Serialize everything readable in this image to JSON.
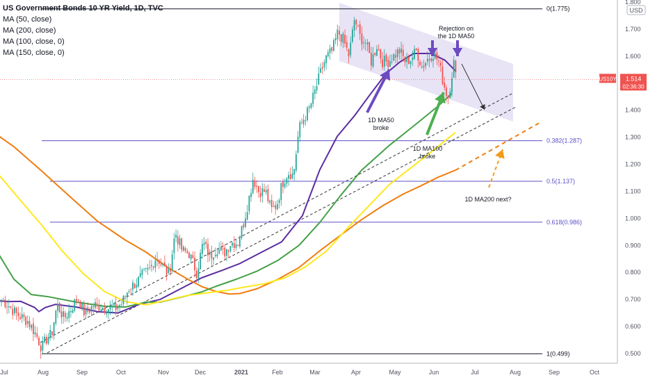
{
  "chart_data": {
    "type": "candlestick",
    "title": "US Government Bonds 10 YR Yield, 1D, TVC",
    "legend": [
      "MA (50, close)",
      "MA (200, close)",
      "MA (100, close, 0)",
      "MA (150, close, 0)"
    ],
    "currency": "USD",
    "x_ticks": [
      "Jul",
      "Aug",
      "Sep",
      "Oct",
      "Nov",
      "Dec",
      "2021",
      "Feb",
      "Mar",
      "Apr",
      "May",
      "Jun",
      "Jul",
      "Aug",
      "Sep",
      "Oct"
    ],
    "y_ticks": [
      "0.500",
      "0.600",
      "0.700",
      "0.800",
      "0.900",
      "1.000",
      "1.100",
      "1.200",
      "1.300",
      "1.400",
      "1.500",
      "1.600",
      "1.700",
      "1.800"
    ],
    "ylim": [
      0.45,
      1.8
    ],
    "price_tag": {
      "symbol": "US10Y",
      "value": "1.514",
      "countdown": "02:36:30",
      "color": "#ef5350"
    },
    "fib_levels": [
      {
        "label": "0(1.775)",
        "value": 1.775,
        "color": "#131722"
      },
      {
        "label": "0.382(1.287)",
        "value": 1.287,
        "color": "#5b4fc7"
      },
      {
        "label": "0.5(1.137)",
        "value": 1.137,
        "color": "#5b4fc7"
      },
      {
        "label": "0.618(0.986)",
        "value": 0.986,
        "color": "#5b4fc7"
      },
      {
        "label": "1(0.499)",
        "value": 0.499,
        "color": "#131722"
      }
    ],
    "annotations": [
      {
        "text": "Rejection on\nthe 1D MA50"
      },
      {
        "text": "1D MA50\nbroke"
      },
      {
        "text": "1D MA100\nbroke"
      },
      {
        "text": "1D MA200 next?"
      }
    ],
    "moving_averages": [
      {
        "name": "MA (50, close)",
        "color": "#5b2ca0",
        "points": [
          [
            -2,
            0.695
          ],
          [
            10,
            0.692
          ],
          [
            30,
            0.693
          ],
          [
            50,
            0.67
          ],
          [
            56,
            0.655
          ],
          [
            65,
            0.67
          ],
          [
            80,
            0.682
          ],
          [
            110,
            0.672
          ],
          [
            140,
            0.655
          ],
          [
            170,
            0.65
          ],
          [
            200,
            0.682
          ],
          [
            230,
            0.7
          ],
          [
            260,
            0.74
          ],
          [
            290,
            0.78
          ],
          [
            320,
            0.808
          ],
          [
            345,
            0.833
          ],
          [
            375,
            0.873
          ],
          [
            405,
            0.913
          ],
          [
            435,
            1.01
          ],
          [
            460,
            1.18
          ],
          [
            485,
            1.303
          ],
          [
            510,
            1.38
          ],
          [
            530,
            1.45
          ],
          [
            555,
            1.535
          ],
          [
            575,
            1.578
          ],
          [
            595,
            1.61
          ],
          [
            620,
            1.61
          ],
          [
            640,
            1.585
          ],
          [
            655,
            1.546
          ]
        ]
      },
      {
        "name": "MA (200, close)",
        "color": "#ef7d0f",
        "points": [
          [
            -2,
            1.305
          ],
          [
            20,
            1.265
          ],
          [
            60,
            1.175
          ],
          [
            100,
            1.082
          ],
          [
            140,
            0.99
          ],
          [
            180,
            0.92
          ],
          [
            210,
            0.875
          ],
          [
            240,
            0.82
          ],
          [
            270,
            0.775
          ],
          [
            290,
            0.748
          ],
          [
            310,
            0.73
          ],
          [
            330,
            0.72
          ],
          [
            345,
            0.722
          ],
          [
            370,
            0.74
          ],
          [
            400,
            0.775
          ],
          [
            430,
            0.818
          ],
          [
            460,
            0.88
          ],
          [
            490,
            0.938
          ],
          [
            520,
            0.995
          ],
          [
            550,
            1.046
          ],
          [
            580,
            1.09
          ],
          [
            605,
            1.12
          ],
          [
            630,
            1.152
          ],
          [
            655,
            1.178
          ]
        ]
      },
      {
        "name": "MA (100, close, 0)",
        "color": "#43a047",
        "points": [
          [
            -2,
            0.868
          ],
          [
            20,
            0.775
          ],
          [
            45,
            0.718
          ],
          [
            70,
            0.71
          ],
          [
            110,
            0.69
          ],
          [
            150,
            0.675
          ],
          [
            180,
            0.672
          ],
          [
            210,
            0.69
          ],
          [
            230,
            0.69
          ],
          [
            260,
            0.708
          ],
          [
            290,
            0.728
          ],
          [
            310,
            0.748
          ],
          [
            340,
            0.775
          ],
          [
            370,
            0.805
          ],
          [
            400,
            0.845
          ],
          [
            430,
            0.9
          ],
          [
            460,
            0.985
          ],
          [
            490,
            1.085
          ],
          [
            520,
            1.178
          ],
          [
            560,
            1.27
          ],
          [
            600,
            1.352
          ],
          [
            630,
            1.415
          ],
          [
            650,
            1.462
          ]
        ]
      },
      {
        "name": "MA (150, close, 0)",
        "color": "#ffe81c",
        "points": [
          [
            -2,
            1.162
          ],
          [
            30,
            1.065
          ],
          [
            60,
            0.975
          ],
          [
            90,
            0.878
          ],
          [
            120,
            0.795
          ],
          [
            150,
            0.73
          ],
          [
            180,
            0.692
          ],
          [
            210,
            0.68
          ],
          [
            240,
            0.697
          ],
          [
            270,
            0.715
          ],
          [
            300,
            0.725
          ],
          [
            330,
            0.735
          ],
          [
            350,
            0.745
          ],
          [
            380,
            0.758
          ],
          [
            410,
            0.78
          ],
          [
            440,
            0.822
          ],
          [
            470,
            0.88
          ],
          [
            500,
            0.965
          ],
          [
            530,
            1.045
          ],
          [
            560,
            1.125
          ],
          [
            590,
            1.185
          ],
          [
            620,
            1.245
          ],
          [
            655,
            1.318
          ]
        ]
      }
    ],
    "price_keys": [
      [
        2,
        0.7
      ],
      [
        12,
        0.68
      ],
      [
        24,
        0.645
      ],
      [
        40,
        0.62
      ],
      [
        52,
        0.57
      ],
      [
        60,
        0.52
      ],
      [
        68,
        0.56
      ],
      [
        74,
        0.57
      ],
      [
        82,
        0.68
      ],
      [
        92,
        0.63
      ],
      [
        102,
        0.665
      ],
      [
        112,
        0.71
      ],
      [
        122,
        0.645
      ],
      [
        135,
        0.68
      ],
      [
        150,
        0.67
      ],
      [
        165,
        0.665
      ],
      [
        175,
        0.685
      ],
      [
        185,
        0.74
      ],
      [
        195,
        0.76
      ],
      [
        205,
        0.79
      ],
      [
        215,
        0.81
      ],
      [
        225,
        0.86
      ],
      [
        235,
        0.82
      ],
      [
        243,
        0.79
      ],
      [
        252,
        0.95
      ],
      [
        262,
        0.88
      ],
      [
        272,
        0.87
      ],
      [
        283,
        0.8
      ],
      [
        292,
        0.91
      ],
      [
        302,
        0.86
      ],
      [
        312,
        0.89
      ],
      [
        322,
        0.87
      ],
      [
        332,
        0.91
      ],
      [
        342,
        0.91
      ],
      [
        350,
        0.98
      ],
      [
        357,
        1.06
      ],
      [
        364,
        1.15
      ],
      [
        372,
        1.1
      ],
      [
        382,
        1.1
      ],
      [
        390,
        1.03
      ],
      [
        398,
        1.05
      ],
      [
        406,
        1.13
      ],
      [
        414,
        1.17
      ],
      [
        422,
        1.16
      ],
      [
        430,
        1.33
      ],
      [
        437,
        1.37
      ],
      [
        444,
        1.4
      ],
      [
        452,
        1.46
      ],
      [
        460,
        1.53
      ],
      [
        468,
        1.59
      ],
      [
        478,
        1.62
      ],
      [
        486,
        1.69
      ],
      [
        494,
        1.66
      ],
      [
        502,
        1.6
      ],
      [
        510,
        1.74
      ],
      [
        518,
        1.67
      ],
      [
        526,
        1.65
      ],
      [
        534,
        1.58
      ],
      [
        542,
        1.64
      ],
      [
        550,
        1.58
      ],
      [
        558,
        1.58
      ],
      [
        566,
        1.6
      ],
      [
        575,
        1.62
      ],
      [
        583,
        1.58
      ],
      [
        591,
        1.59
      ],
      [
        599,
        1.62
      ],
      [
        607,
        1.56
      ],
      [
        615,
        1.59
      ],
      [
        623,
        1.61
      ],
      [
        631,
        1.58
      ],
      [
        636,
        1.52
      ],
      [
        641,
        1.47
      ],
      [
        645,
        1.45
      ],
      [
        649,
        1.52
      ],
      [
        653,
        1.58
      ],
      [
        656,
        1.51
      ]
    ]
  }
}
